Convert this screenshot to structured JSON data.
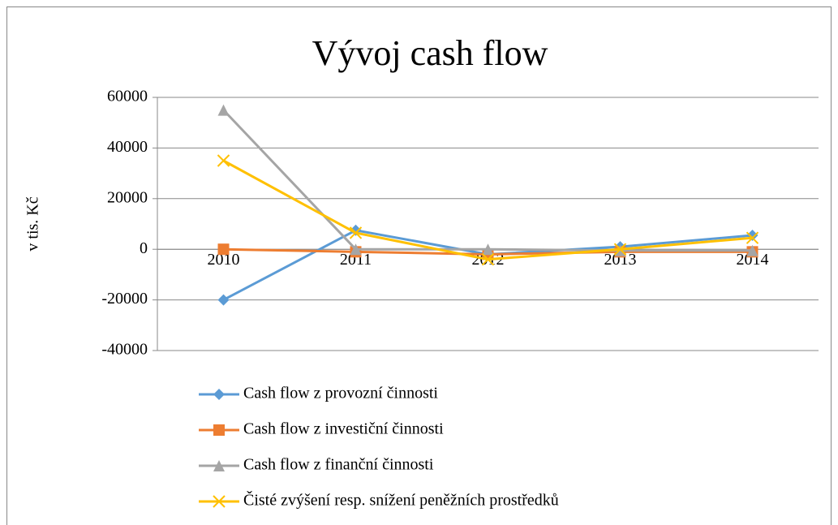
{
  "chart_data": {
    "type": "line",
    "title": "Vývoj cash flow",
    "y_label": "v tis. Kč",
    "categories": [
      "2010",
      "2011",
      "2012",
      "2013",
      "2014"
    ],
    "series": [
      {
        "name": "Cash flow z provozní činnosti",
        "color": "#5b9bd5",
        "marker": "diamond",
        "values": [
          -20000,
          7500,
          -2000,
          1000,
          5500
        ]
      },
      {
        "name": "Cash flow z investiční činnosti",
        "color": "#ed7d31",
        "marker": "square",
        "values": [
          0,
          -1000,
          -2000,
          -1000,
          -1000
        ]
      },
      {
        "name": "Cash flow z finanční činnosti",
        "color": "#a5a5a5",
        "marker": "triangle",
        "values": [
          55000,
          0,
          0,
          -500,
          -500
        ]
      },
      {
        "name": "Čisté zvýšení resp. snížení peněžních prostředků",
        "color": "#ffc000",
        "marker": "x",
        "values": [
          35000,
          6500,
          -4000,
          0,
          4500
        ]
      }
    ],
    "ylim": [
      -40000,
      60000
    ],
    "yticks": [
      -40000,
      -20000,
      0,
      20000,
      40000,
      60000
    ],
    "grid": true,
    "legend": "bottom"
  }
}
